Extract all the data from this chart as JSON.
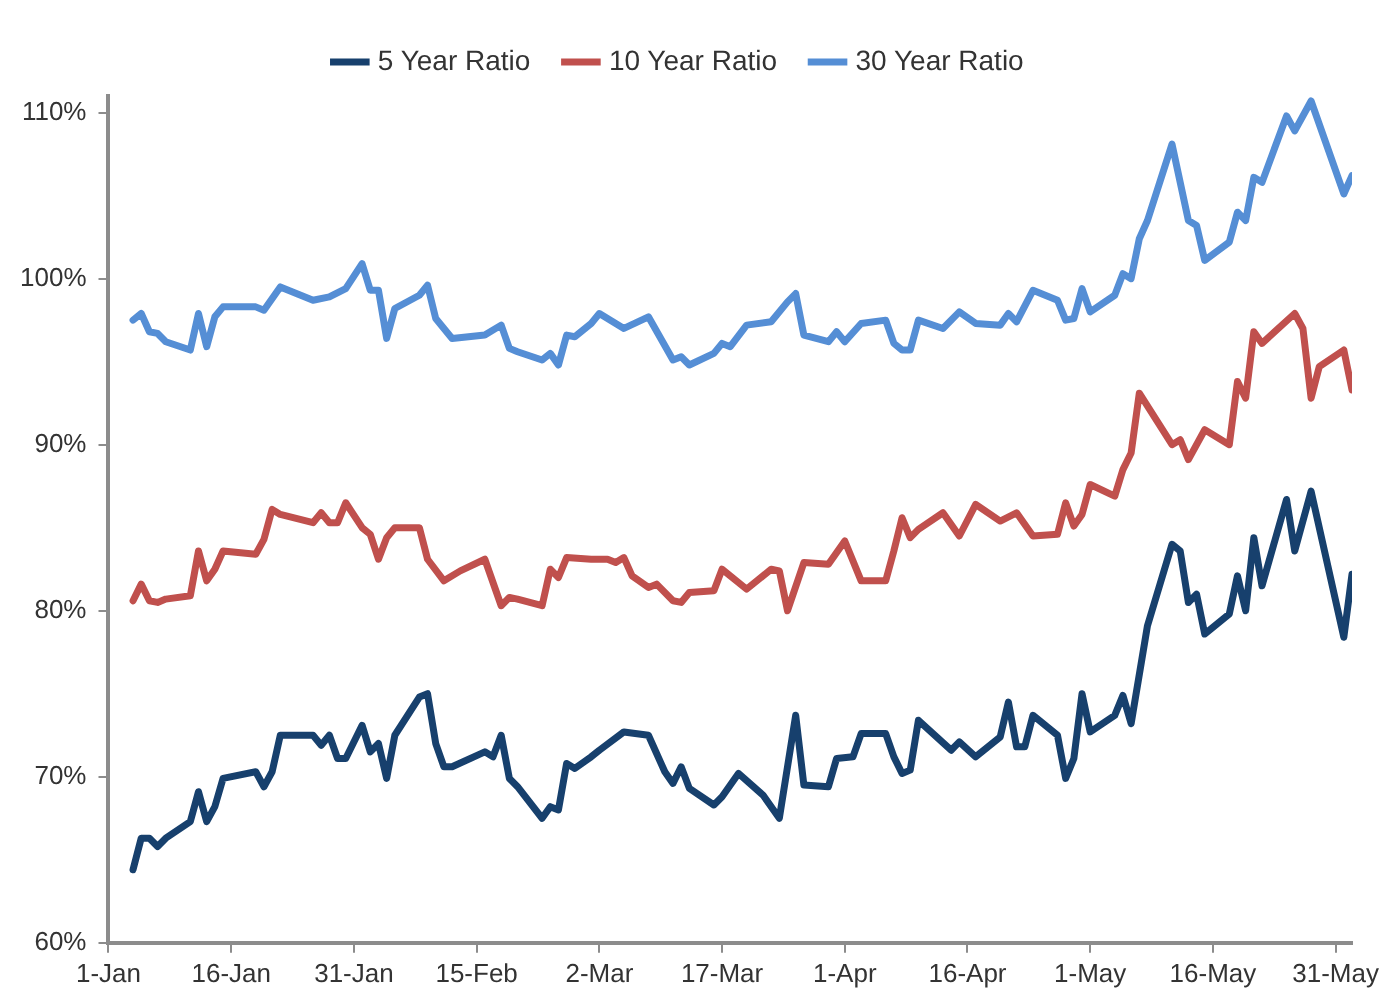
{
  "chart_data": {
    "type": "line",
    "xlim": [
      "--01-01",
      "--06-02"
    ],
    "xticks": [
      {
        "value": "--01-01",
        "label": "1-Jan"
      },
      {
        "value": "--01-16",
        "label": "16-Jan"
      },
      {
        "value": "--01-31",
        "label": "31-Jan"
      },
      {
        "value": "--02-15",
        "label": "15-Feb"
      },
      {
        "value": "--03-02",
        "label": "2-Mar"
      },
      {
        "value": "--03-17",
        "label": "17-Mar"
      },
      {
        "value": "--04-01",
        "label": "1-Apr"
      },
      {
        "value": "--04-16",
        "label": "16-Apr"
      },
      {
        "value": "--05-01",
        "label": "1-May"
      },
      {
        "value": "--05-16",
        "label": "16-May"
      },
      {
        "value": "--05-31",
        "label": "31-May"
      }
    ],
    "ylim": [
      60,
      111
    ],
    "yticks": [
      {
        "value": 60,
        "label": "60%"
      },
      {
        "value": 70,
        "label": "70%"
      },
      {
        "value": 80,
        "label": "80%"
      },
      {
        "value": 90,
        "label": "90%"
      },
      {
        "value": 100,
        "label": "100%"
      },
      {
        "value": 110,
        "label": "110%"
      }
    ],
    "grid": false,
    "legend": "top",
    "marker": "none",
    "line_style": "solid",
    "series": [
      {
        "name": "5 Year Ratio",
        "color": "#17406d",
        "x": [
          "--01-04",
          "--01-05",
          "--01-06",
          "--01-07",
          "--01-08",
          "--01-11",
          "--01-12",
          "--01-13",
          "--01-14",
          "--01-15",
          "--01-19",
          "--01-20",
          "--01-21",
          "--01-22",
          "--01-26",
          "--01-27",
          "--01-28",
          "--01-29",
          "--01-30",
          "--02-01",
          "--02-02",
          "--02-03",
          "--02-04",
          "--02-05",
          "--02-08",
          "--02-09",
          "--02-10",
          "--02-11",
          "--02-12",
          "--02-16",
          "--02-17",
          "--02-18",
          "--02-19",
          "--02-20",
          "--02-23",
          "--02-24",
          "--02-25",
          "--02-26",
          "--02-27",
          "--03-01",
          "--03-02",
          "--03-05",
          "--03-08",
          "--03-10",
          "--03-11",
          "--03-12",
          "--03-13",
          "--03-16",
          "--03-17",
          "--03-19",
          "--03-22",
          "--03-24",
          "--03-26",
          "--03-27",
          "--03-30",
          "--03-31",
          "--04-02",
          "--04-03",
          "--04-06",
          "--04-07",
          "--04-08",
          "--04-09",
          "--04-10",
          "--04-14",
          "--04-15",
          "--04-17",
          "--04-20",
          "--04-21",
          "--04-22",
          "--04-23",
          "--04-24",
          "--04-27",
          "--04-28",
          "--04-29",
          "--04-30",
          "--05-01",
          "--05-04",
          "--05-05",
          "--05-06",
          "--05-08",
          "--05-11",
          "--05-12",
          "--05-13",
          "--05-14",
          "--05-15",
          "--05-18",
          "--05-19",
          "--05-20",
          "--05-21",
          "--05-22",
          "--05-25",
          "--05-26",
          "--05-28",
          "--06-01",
          "--06-02"
        ],
        "values": [
          64.4,
          66.3,
          66.3,
          65.8,
          66.3,
          67.3,
          69.1,
          67.3,
          68.2,
          69.9,
          70.3,
          69.4,
          70.3,
          72.5,
          72.5,
          71.9,
          72.5,
          71.1,
          71.1,
          73.1,
          71.5,
          72.0,
          69.9,
          72.5,
          74.8,
          75.0,
          72.0,
          70.6,
          70.6,
          71.5,
          71.2,
          72.5,
          69.9,
          69.4,
          67.5,
          68.2,
          68.0,
          70.8,
          70.5,
          71.2,
          71.6,
          72.7,
          72.5,
          70.3,
          69.6,
          70.6,
          69.3,
          68.3,
          68.8,
          70.2,
          68.9,
          67.5,
          73.7,
          69.5,
          69.4,
          71.1,
          71.2,
          72.6,
          72.6,
          71.2,
          70.2,
          70.4,
          73.4,
          71.6,
          72.1,
          71.2,
          72.4,
          74.5,
          71.8,
          71.8,
          73.7,
          72.5,
          69.9,
          71.1,
          75.0,
          72.7,
          73.7,
          74.9,
          73.2,
          79.1,
          84.0,
          83.6,
          80.5,
          81.0,
          78.6,
          79.8,
          82.1,
          80.0,
          84.4,
          81.5,
          86.7,
          83.6,
          87.2,
          78.4,
          82.2
        ]
      },
      {
        "name": "10 Year Ratio",
        "color": "#c0504d",
        "x": [
          "--01-04",
          "--01-05",
          "--01-06",
          "--01-07",
          "--01-08",
          "--01-11",
          "--01-12",
          "--01-13",
          "--01-14",
          "--01-15",
          "--01-19",
          "--01-20",
          "--01-21",
          "--01-22",
          "--01-26",
          "--01-27",
          "--01-28",
          "--01-29",
          "--01-30",
          "--02-01",
          "--02-02",
          "--02-03",
          "--02-04",
          "--02-05",
          "--02-08",
          "--02-09",
          "--02-11",
          "--02-13",
          "--02-16",
          "--02-18",
          "--02-19",
          "--02-20",
          "--02-23",
          "--02-24",
          "--02-25",
          "--02-26",
          "--03-01",
          "--03-03",
          "--03-04",
          "--03-05",
          "--03-06",
          "--03-08",
          "--03-09",
          "--03-11",
          "--03-12",
          "--03-13",
          "--03-16",
          "--03-17",
          "--03-20",
          "--03-23",
          "--03-24",
          "--03-25",
          "--03-27",
          "--03-30",
          "--04-01",
          "--04-03",
          "--04-06",
          "--04-07",
          "--04-08",
          "--04-09",
          "--04-10",
          "--04-13",
          "--04-15",
          "--04-17",
          "--04-20",
          "--04-22",
          "--04-24",
          "--04-27",
          "--04-28",
          "--04-29",
          "--04-30",
          "--05-01",
          "--05-04",
          "--05-05",
          "--05-06",
          "--05-07",
          "--05-11",
          "--05-12",
          "--05-13",
          "--05-15",
          "--05-18",
          "--05-19",
          "--05-20",
          "--05-21",
          "--05-22",
          "--05-26",
          "--05-27",
          "--05-28",
          "--05-29",
          "--06-01",
          "--06-02"
        ],
        "values": [
          80.6,
          81.6,
          80.6,
          80.5,
          80.7,
          80.9,
          83.6,
          81.8,
          82.5,
          83.6,
          83.4,
          84.3,
          86.1,
          85.8,
          85.3,
          85.9,
          85.3,
          85.3,
          86.5,
          85.0,
          84.6,
          83.1,
          84.4,
          85.0,
          85.0,
          83.1,
          81.8,
          82.4,
          83.1,
          80.3,
          80.8,
          80.7,
          80.3,
          82.5,
          82.0,
          83.2,
          83.1,
          83.1,
          82.9,
          83.2,
          82.1,
          81.4,
          81.6,
          80.6,
          80.5,
          81.1,
          81.2,
          82.5,
          81.3,
          82.5,
          82.4,
          80.0,
          82.9,
          82.8,
          84.2,
          81.8,
          81.8,
          83.6,
          85.6,
          84.4,
          84.9,
          85.9,
          84.5,
          86.4,
          85.4,
          85.9,
          84.5,
          84.6,
          86.5,
          85.1,
          85.8,
          87.6,
          86.9,
          88.5,
          89.5,
          93.1,
          90.0,
          90.3,
          89.1,
          90.9,
          90.0,
          93.8,
          92.8,
          96.8,
          96.1,
          97.9,
          97.0,
          92.8,
          94.7,
          95.7,
          93.3
        ]
      },
      {
        "name": "30 Year Ratio",
        "color": "#558ed5",
        "x": [
          "--01-04",
          "--01-05",
          "--01-06",
          "--01-07",
          "--01-08",
          "--01-11",
          "--01-12",
          "--01-13",
          "--01-14",
          "--01-15",
          "--01-19",
          "--01-20",
          "--01-22",
          "--01-26",
          "--01-28",
          "--01-30",
          "--02-01",
          "--02-02",
          "--02-03",
          "--02-04",
          "--02-05",
          "--02-08",
          "--02-09",
          "--02-10",
          "--02-12",
          "--02-16",
          "--02-18",
          "--02-19",
          "--02-20",
          "--02-23",
          "--02-24",
          "--02-25",
          "--02-26",
          "--02-27",
          "--03-01",
          "--03-02",
          "--03-05",
          "--03-08",
          "--03-11",
          "--03-12",
          "--03-13",
          "--03-16",
          "--03-17",
          "--03-18",
          "--03-20",
          "--03-23",
          "--03-25",
          "--03-26",
          "--03-27",
          "--03-30",
          "--03-31",
          "--04-01",
          "--04-03",
          "--04-06",
          "--04-07",
          "--04-08",
          "--04-09",
          "--04-10",
          "--04-13",
          "--04-15",
          "--04-17",
          "--04-20",
          "--04-21",
          "--04-22",
          "--04-24",
          "--04-27",
          "--04-28",
          "--04-29",
          "--04-30",
          "--05-01",
          "--05-04",
          "--05-05",
          "--05-06",
          "--05-07",
          "--05-08",
          "--05-11",
          "--05-13",
          "--05-14",
          "--05-15",
          "--05-18",
          "--05-19",
          "--05-20",
          "--05-21",
          "--05-22",
          "--05-25",
          "--05-26",
          "--05-28",
          "--06-01",
          "--06-02"
        ],
        "values": [
          97.5,
          97.9,
          96.8,
          96.7,
          96.2,
          95.7,
          97.9,
          95.9,
          97.7,
          98.3,
          98.3,
          98.1,
          99.5,
          98.7,
          98.9,
          99.4,
          100.9,
          99.3,
          99.3,
          96.4,
          98.2,
          99.0,
          99.6,
          97.6,
          96.4,
          96.6,
          97.2,
          95.8,
          95.6,
          95.1,
          95.5,
          94.8,
          96.6,
          96.5,
          97.3,
          97.9,
          97.0,
          97.7,
          95.1,
          95.3,
          94.8,
          95.5,
          96.1,
          95.9,
          97.2,
          97.4,
          98.6,
          99.1,
          96.6,
          96.2,
          96.8,
          96.2,
          97.3,
          97.5,
          96.1,
          95.7,
          95.7,
          97.5,
          97.0,
          98.0,
          97.3,
          97.2,
          97.9,
          97.4,
          99.3,
          98.7,
          97.5,
          97.6,
          99.4,
          98.0,
          99.0,
          100.3,
          100.0,
          102.4,
          103.5,
          108.1,
          103.5,
          103.2,
          101.1,
          102.2,
          104.0,
          103.5,
          106.1,
          105.8,
          109.8,
          108.9,
          110.7,
          105.1,
          106.2
        ]
      }
    ]
  }
}
